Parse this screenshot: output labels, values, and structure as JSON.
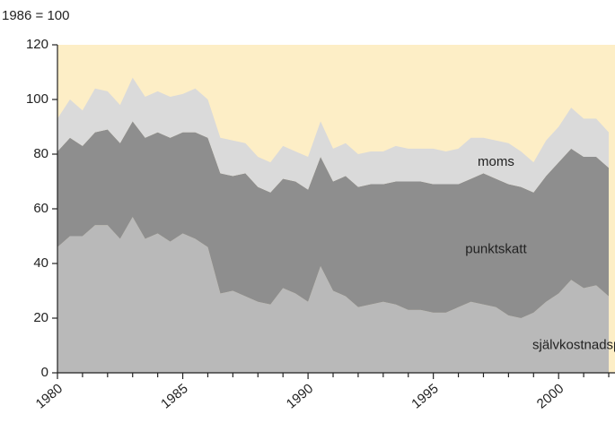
{
  "chart_data": {
    "type": "stacked_area",
    "y_label": "1986 = 100",
    "x": [
      1980,
      1980.5,
      1981,
      1981.5,
      1982,
      1982.5,
      1983,
      1983.5,
      1984,
      1984.5,
      1985,
      1985.5,
      1986,
      1986.5,
      1987,
      1987.5,
      1988,
      1988.5,
      1989,
      1989.5,
      1990,
      1990.5,
      1991,
      1991.5,
      1992,
      1992.5,
      1993,
      1993.5,
      1994,
      1994.5,
      1995,
      1995.5,
      1996,
      1996.5,
      1997,
      1997.5,
      1998,
      1998.5,
      1999,
      1999.5,
      2000,
      2000.5,
      2001,
      2001.5,
      2002
    ],
    "series": [
      {
        "name": "självkostnadspris",
        "color": "#b9b9b9",
        "values": [
          46,
          50,
          50,
          54,
          54,
          49,
          57,
          49,
          51,
          48,
          51,
          49,
          46,
          29,
          30,
          28,
          26,
          25,
          31,
          29,
          26,
          39,
          30,
          28,
          24,
          25,
          26,
          25,
          23,
          23,
          22,
          22,
          24,
          26,
          25,
          24,
          21,
          20,
          22,
          26,
          29,
          34,
          31,
          32,
          28
        ]
      },
      {
        "name": "punktskatt",
        "color": "#8e8e8e",
        "values": [
          35,
          36,
          33,
          34,
          35,
          35,
          35,
          37,
          37,
          38,
          37,
          39,
          40,
          44,
          42,
          45,
          42,
          41,
          40,
          41,
          41,
          40,
          40,
          44,
          44,
          44,
          43,
          45,
          47,
          47,
          47,
          47,
          45,
          45,
          48,
          47,
          48,
          48,
          44,
          46,
          48,
          48,
          48,
          47,
          47
        ]
      },
      {
        "name": "moms",
        "color": "#dadada",
        "values": [
          12,
          14,
          13,
          16,
          14,
          14,
          16,
          15,
          15,
          15,
          14,
          16,
          14,
          13,
          13,
          11,
          11,
          11,
          12,
          11,
          12,
          13,
          12,
          12,
          12,
          12,
          12,
          13,
          12,
          12,
          13,
          12,
          13,
          15,
          13,
          14,
          15,
          13,
          11,
          13,
          13,
          15,
          14,
          14,
          13
        ]
      }
    ],
    "background": "#fdeec6",
    "xlim": [
      1980,
      2002.25
    ],
    "xticks": [
      1980,
      1985,
      1990,
      1995,
      2000
    ],
    "xticks_minor": [
      1981,
      1982,
      1983,
      1984,
      1986,
      1987,
      1988,
      1989,
      1991,
      1992,
      1993,
      1994,
      1996,
      1997,
      1998,
      1999,
      2001,
      2002
    ],
    "ylim": [
      0,
      120
    ],
    "yticks": [
      0,
      20,
      40,
      60,
      80,
      100,
      120
    ]
  }
}
